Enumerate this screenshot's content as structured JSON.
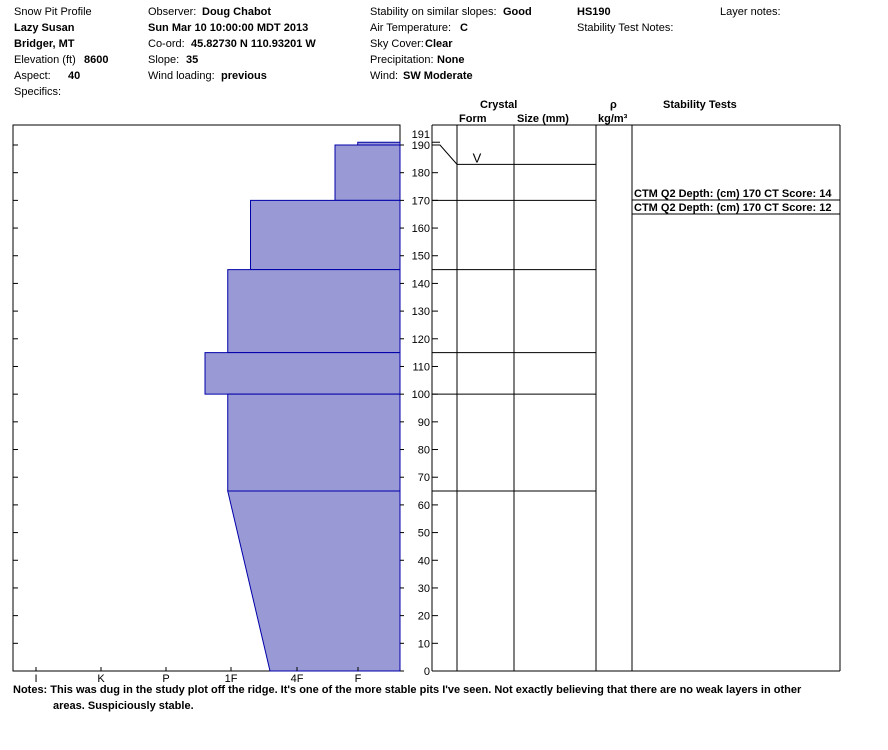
{
  "header": {
    "col1": {
      "title": "Snow Pit Profile",
      "location": "Lazy Susan",
      "region": "Bridger, MT",
      "elevation_label": "Elevation (ft)",
      "elevation_value": "8600",
      "aspect_label": "Aspect:",
      "aspect_value": "40",
      "specifics_label": "Specifics:"
    },
    "col2": {
      "observer_label": "Observer:",
      "observer_value": "Doug Chabot",
      "datetime": "Sun Mar 10 10:00:00 MDT 2013",
      "coord_label": "Co-ord:",
      "coord_value": "45.82730 N 110.93201 W",
      "slope_label": "Slope:",
      "slope_value": "35",
      "wind_loading_label": "Wind loading:",
      "wind_loading_value": "previous"
    },
    "col3": {
      "stability_label": "Stability on similar slopes:",
      "stability_value": "Good",
      "air_temp_label": "Air Temperature:",
      "air_temp_value": "C",
      "sky_label": "Sky Cover:",
      "sky_value": "Clear",
      "precip_label": "Precipitation:",
      "precip_value": "None",
      "wind_label": "Wind:",
      "wind_value": "SW Moderate"
    },
    "col4": {
      "hs": "HS190",
      "stability_notes_label": "Stability Test Notes:"
    },
    "col5": {
      "layer_notes_label": "Layer notes:"
    }
  },
  "columns": {
    "crystal": "Crystal",
    "form": "Form",
    "size": "Size (mm)",
    "rho": "ρ",
    "density_unit": "kg/m³",
    "stability_tests": "Stability Tests"
  },
  "chart_data": {
    "type": "bar",
    "description_free": true,
    "y_axis": {
      "range": [
        0,
        191
      ],
      "ticks": [
        0,
        10,
        20,
        30,
        40,
        50,
        60,
        70,
        80,
        90,
        100,
        110,
        120,
        130,
        140,
        150,
        160,
        170,
        180,
        190,
        191
      ]
    },
    "hardness_scale": [
      "I",
      "K",
      "P",
      "1F",
      "4F",
      "F"
    ],
    "layers": [
      {
        "top": 191,
        "bottom": 190,
        "hardness_top": 0.65,
        "hardness_bottom": 0.65
      },
      {
        "top": 190,
        "bottom": 170,
        "hardness_top": 1.0,
        "hardness_bottom": 1.0
      },
      {
        "top": 170,
        "bottom": 145,
        "hardness_top": 2.3,
        "hardness_bottom": 2.3
      },
      {
        "top": 145,
        "bottom": 115,
        "hardness_top": 2.65,
        "hardness_bottom": 2.65
      },
      {
        "top": 115,
        "bottom": 100,
        "hardness_top": 3.0,
        "hardness_bottom": 3.0
      },
      {
        "top": 100,
        "bottom": 65,
        "hardness_top": 2.65,
        "hardness_bottom": 2.65
      },
      {
        "top": 65,
        "bottom": 0,
        "hardness_top": 2.65,
        "hardness_bottom": 2.0
      }
    ],
    "crystal_symbols": [
      {
        "depth": 187,
        "symbol": "V"
      }
    ],
    "stability_tests": [
      {
        "depth": 170,
        "text": "CTM Q2 Depth: (cm) 170 CT Score: 14"
      },
      {
        "depth": 170,
        "text": "CTM Q2 Depth: (cm) 170 CT Score: 12"
      }
    ]
  },
  "notes": {
    "label": "Notes:",
    "line1": "This was dug in the study plot off the ridge.  It's one of the more stable pits I've seen.  Not exactly believing that there are no weak layers in other",
    "line2": "areas.  Suspiciously stable."
  },
  "colors": {
    "fill": "#9999d6",
    "stroke": "#0000aa",
    "axis": "#000000"
  }
}
